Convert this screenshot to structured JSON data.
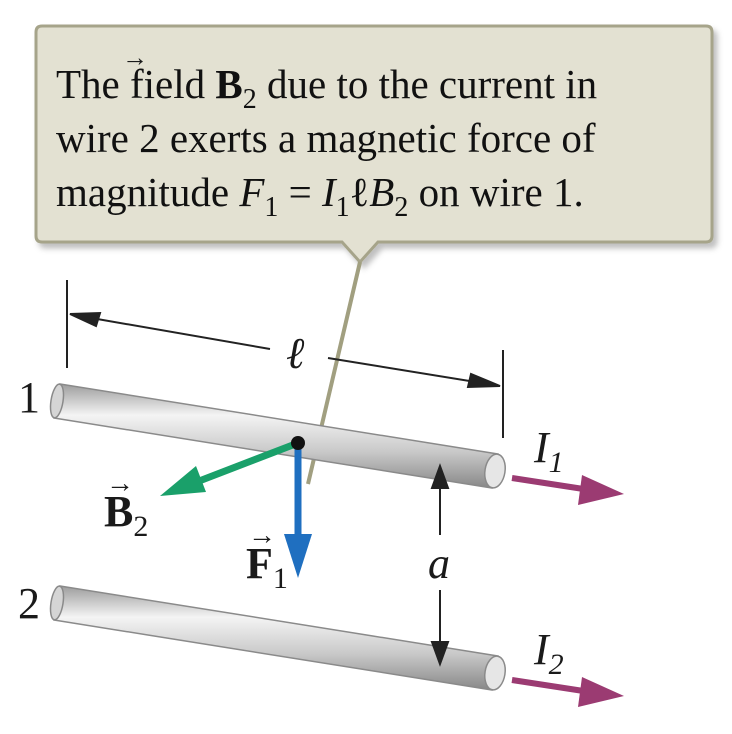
{
  "callout": {
    "part1": "The field ",
    "b_symbol": "B",
    "b_sub": "2",
    "part2": " due to the current in",
    "line2": "wire 2 exerts a magnetic force of",
    "line3_a": "magnitude ",
    "f_symbol": "F",
    "f_sub": "1",
    "eq": " = ",
    "i_symbol": "I",
    "i_sub": "1",
    "ell": "ℓ",
    "b2_symbol": "B",
    "b2_sub": "2",
    "line3_b": " on wire 1."
  },
  "labels": {
    "wire1": "1",
    "wire2": "2",
    "length": "ℓ",
    "separation": "a",
    "current1": "I",
    "current1_sub": "1",
    "current2": "I",
    "current2_sub": "2",
    "field": "B",
    "field_sub": "2",
    "force": "F",
    "force_sub": "1",
    "vector_arrow": "→"
  },
  "colors": {
    "callout_fill": "#e3e1d2",
    "callout_border": "#9c9a80",
    "leader_line": "#a19f80",
    "wire_light": "#f2f2f2",
    "wire_dark": "#9a9a9a",
    "current_arrow": "#9b3b72",
    "field_arrow": "#1aa06a",
    "force_arrow": "#1f6fc0"
  }
}
